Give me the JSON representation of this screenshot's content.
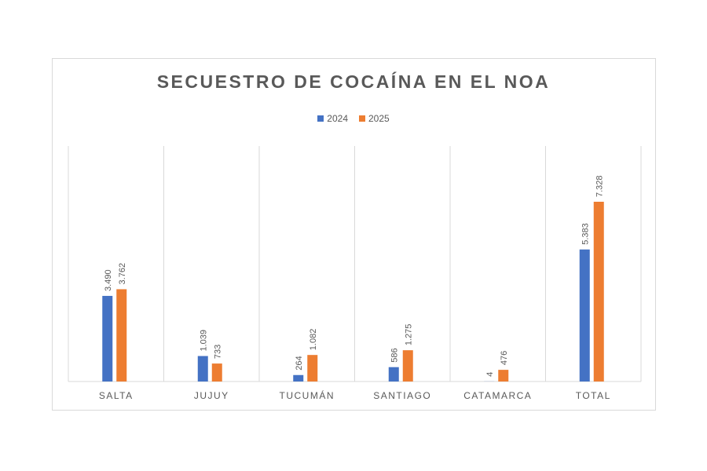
{
  "chart_data": {
    "type": "bar",
    "title": "SECUESTRO DE COCAÍNA EN EL NOA",
    "categories": [
      "SALTA",
      "JUJUY",
      "TUCUMÁN",
      "SANTIAGO",
      "CATAMARCA",
      "TOTAL"
    ],
    "series": [
      {
        "name": "2024",
        "color": "#4472c4",
        "values": [
          3490,
          1039,
          264,
          586,
          4,
          5383
        ],
        "labels": [
          "3.490",
          "1.039",
          "264",
          "586",
          "4",
          "5.383"
        ]
      },
      {
        "name": "2025",
        "color": "#ed7d31",
        "values": [
          3762,
          733,
          1082,
          1275,
          476,
          7328
        ],
        "labels": [
          "3.762",
          "733",
          "1.082",
          "1.275",
          "476",
          "7.328"
        ]
      }
    ],
    "xlabel": "",
    "ylabel": "",
    "ylim": [
      0,
      9600
    ],
    "legend_position": "top-center",
    "gridlines": "vertical category separators"
  }
}
